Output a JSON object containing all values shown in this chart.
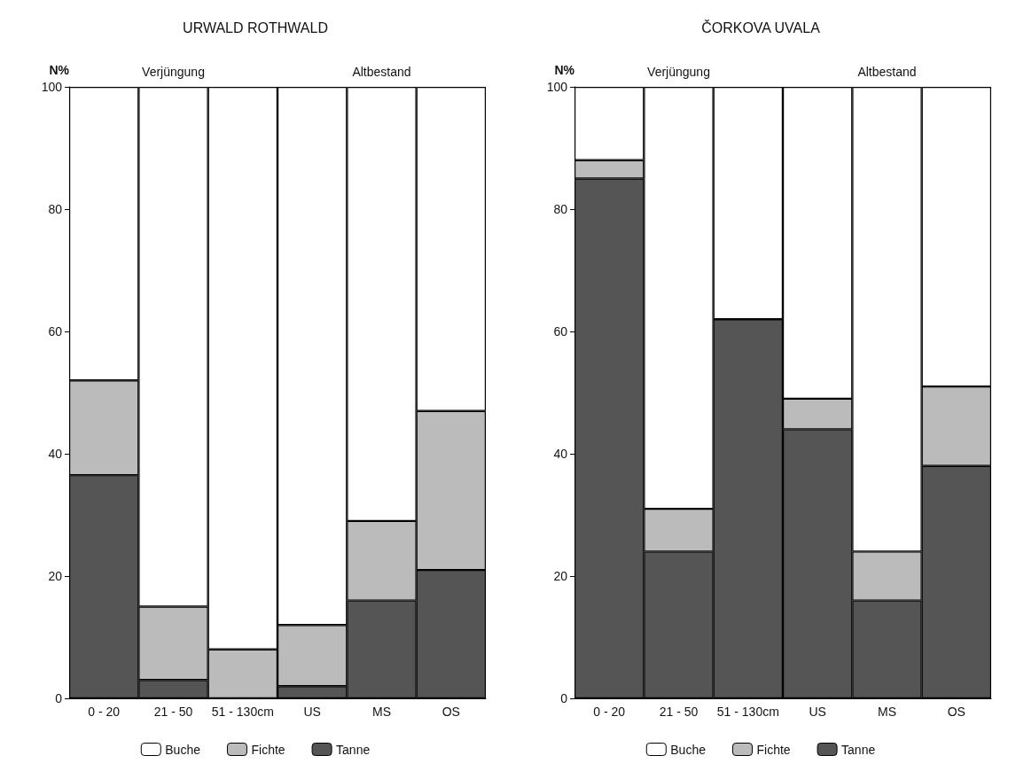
{
  "chart_data": [
    {
      "type": "bar",
      "title": "URWALD ROTHWALD",
      "ylabel": "N%",
      "categories": [
        "0 - 20",
        "21 - 50",
        "51 - 130cm",
        "US",
        "MS",
        "OS"
      ],
      "stacked": true,
      "ylim": [
        0,
        100
      ],
      "yticks": [
        0,
        20,
        40,
        60,
        80,
        100
      ],
      "grid": false,
      "legend": "bottom",
      "annotations": [
        "Verjüngung",
        "Altbestand"
      ],
      "series": [
        {
          "name": "Tanne",
          "color": "#555555",
          "values": [
            36.5,
            3,
            0,
            2,
            16,
            21
          ]
        },
        {
          "name": "Fichte",
          "color": "#bbbbbb",
          "values": [
            15.5,
            12,
            8,
            10,
            13,
            26
          ]
        },
        {
          "name": "Buche",
          "color": "#ffffff",
          "values": [
            48,
            85,
            92,
            88,
            71,
            53
          ]
        }
      ]
    },
    {
      "type": "bar",
      "title": "ČORKOVA UVALA",
      "ylabel": "N%",
      "categories": [
        "0 - 20",
        "21 - 50",
        "51 - 130cm",
        "US",
        "MS",
        "OS"
      ],
      "stacked": true,
      "ylim": [
        0,
        100
      ],
      "yticks": [
        0,
        20,
        40,
        60,
        80,
        100
      ],
      "grid": false,
      "legend": "bottom",
      "annotations": [
        "Verjüngung",
        "Altbestand"
      ],
      "series": [
        {
          "name": "Tanne",
          "color": "#555555",
          "values": [
            85,
            24,
            62,
            44,
            16,
            38
          ]
        },
        {
          "name": "Fichte",
          "color": "#bbbbbb",
          "values": [
            3,
            7,
            0,
            5,
            8,
            13
          ]
        },
        {
          "name": "Buche",
          "color": "#ffffff",
          "values": [
            12,
            69,
            38,
            51,
            76,
            49
          ]
        }
      ]
    }
  ]
}
